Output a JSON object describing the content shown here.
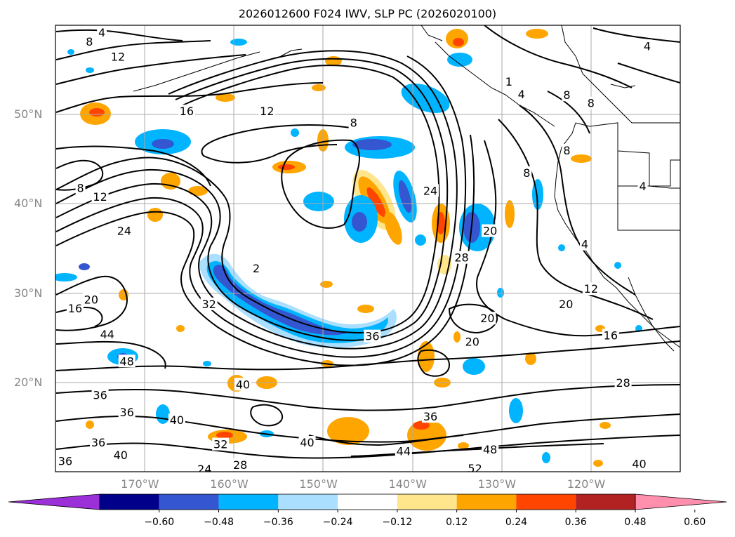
{
  "title": "2026012600 F024 IWV, SLP PC (2026020100)",
  "map": {
    "projection": "lat-lon",
    "lon_range": [
      -180,
      -110
    ],
    "lat_range": [
      10,
      60
    ],
    "lon_ticks": [
      {
        "value": -170,
        "label": "170°W"
      },
      {
        "value": -160,
        "label": "160°W"
      },
      {
        "value": -150,
        "label": "150°W"
      },
      {
        "value": -140,
        "label": "140°W"
      },
      {
        "value": -130,
        "label": "130°W"
      },
      {
        "value": -120,
        "label": "120°W"
      }
    ],
    "lat_ticks": [
      {
        "value": 50,
        "label": "50°N"
      },
      {
        "value": 40,
        "label": "40°N"
      },
      {
        "value": 30,
        "label": "30°N"
      },
      {
        "value": 20,
        "label": "20°N"
      }
    ],
    "grid": true,
    "contour_labels": [
      {
        "text": "4",
        "lon": -174.8,
        "lat": 59.2
      },
      {
        "text": "8",
        "lon": -176.2,
        "lat": 58.2
      },
      {
        "text": "12",
        "lon": -173,
        "lat": 56.5
      },
      {
        "text": "16",
        "lon": -165.3,
        "lat": 50.4
      },
      {
        "text": "12",
        "lon": -156.3,
        "lat": 50.4
      },
      {
        "text": "8",
        "lon": -146.6,
        "lat": 49.1
      },
      {
        "text": "8",
        "lon": -177.2,
        "lat": 41.8
      },
      {
        "text": "12",
        "lon": -175,
        "lat": 40.8
      },
      {
        "text": "24",
        "lon": -172.3,
        "lat": 37
      },
      {
        "text": "24",
        "lon": -138,
        "lat": 41.5
      },
      {
        "text": "20",
        "lon": -131.3,
        "lat": 37
      },
      {
        "text": "28",
        "lon": -134.5,
        "lat": 34
      },
      {
        "text": "2",
        "lon": -157.5,
        "lat": 32.8
      },
      {
        "text": "32",
        "lon": -162.8,
        "lat": 28.8
      },
      {
        "text": "20",
        "lon": -176,
        "lat": 29.3
      },
      {
        "text": "16",
        "lon": -177.8,
        "lat": 28.3
      },
      {
        "text": "44",
        "lon": -174.2,
        "lat": 25.4
      },
      {
        "text": "48",
        "lon": -172,
        "lat": 22.4
      },
      {
        "text": "36",
        "lon": -175,
        "lat": 18.6
      },
      {
        "text": "36",
        "lon": -172,
        "lat": 16.7
      },
      {
        "text": "36",
        "lon": -175.2,
        "lat": 13.3
      },
      {
        "text": "40",
        "lon": -172.7,
        "lat": 11.9
      },
      {
        "text": "36",
        "lon": -178.9,
        "lat": 11.2
      },
      {
        "text": "40",
        "lon": -159,
        "lat": 19.8
      },
      {
        "text": "40",
        "lon": -166.4,
        "lat": 15.8
      },
      {
        "text": "32",
        "lon": -161.5,
        "lat": 13.1
      },
      {
        "text": "40",
        "lon": -151.8,
        "lat": 13.3
      },
      {
        "text": "24",
        "lon": -163.3,
        "lat": 10.3
      },
      {
        "text": "28",
        "lon": -159.3,
        "lat": 10.8
      },
      {
        "text": "36",
        "lon": -144.5,
        "lat": 25.2
      },
      {
        "text": "36",
        "lon": -138,
        "lat": 16.2
      },
      {
        "text": "44",
        "lon": -141,
        "lat": 12.3
      },
      {
        "text": "48",
        "lon": -131.3,
        "lat": 12.5
      },
      {
        "text": "52",
        "lon": -133,
        "lat": 10.4
      },
      {
        "text": "40",
        "lon": -114.6,
        "lat": 10.9
      },
      {
        "text": "28",
        "lon": -116.4,
        "lat": 20
      },
      {
        "text": "20",
        "lon": -133.3,
        "lat": 24.6
      },
      {
        "text": "20",
        "lon": -131.6,
        "lat": 27.2
      },
      {
        "text": "20",
        "lon": -122.8,
        "lat": 28.8
      },
      {
        "text": "12",
        "lon": -120,
        "lat": 30.5
      },
      {
        "text": "16",
        "lon": -117.8,
        "lat": 25.3
      },
      {
        "text": "4",
        "lon": -120.7,
        "lat": 35.5
      },
      {
        "text": "8",
        "lon": -127.2,
        "lat": 43.5
      },
      {
        "text": "8",
        "lon": -122.7,
        "lat": 46
      },
      {
        "text": "4",
        "lon": -114.2,
        "lat": 42
      },
      {
        "text": "8",
        "lon": -122.7,
        "lat": 52.2
      },
      {
        "text": "8",
        "lon": -120,
        "lat": 51.3
      },
      {
        "text": "4",
        "lon": -113.7,
        "lat": 57.7
      },
      {
        "text": "4",
        "lon": -127.8,
        "lat": 52.3
      },
      {
        "text": "1",
        "lon": -129.2,
        "lat": 53.7
      }
    ]
  },
  "colorbar": {
    "colors": [
      "#9b30d8",
      "#00008b",
      "#3457d1",
      "#00b4ff",
      "#aadfff",
      "#ffffff",
      "#ffe68c",
      "#ffa500",
      "#ff4500",
      "#b22222",
      "#ff8fad"
    ],
    "labels": [
      "−0.60",
      "−0.48",
      "−0.36",
      "−0.24",
      "−0.12",
      "0.12",
      "0.24",
      "0.36",
      "0.48",
      "0.60"
    ],
    "extend": "both"
  }
}
